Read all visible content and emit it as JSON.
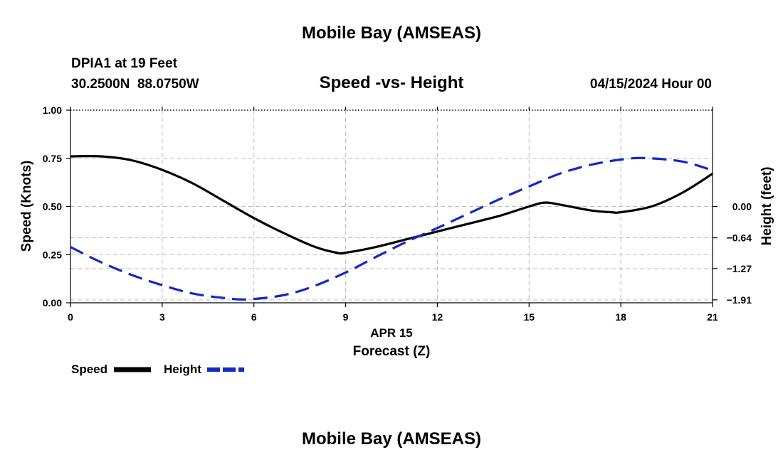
{
  "chart_data": {
    "type": "line",
    "title": "Mobile Bay (AMSEAS)",
    "footer_title": "Mobile Bay (AMSEAS)",
    "station": "DPIA1 at 19 Feet",
    "coordinates": "30.2500N  88.0750W",
    "subtitle": "Speed -vs- Height",
    "datetime": "04/15/2024 Hour 00",
    "date_label": "APR 15",
    "xlabel": "Forecast (Z)",
    "ylabel_left": "Speed (Knots)",
    "ylabel_right": "Height (feet)",
    "xlim": [
      0,
      21
    ],
    "ylim_left": [
      0,
      1
    ],
    "ylim_right": [
      -1.97,
      1.97
    ],
    "x_ticks": [
      0,
      3,
      6,
      9,
      12,
      15,
      18,
      21
    ],
    "x_tick_labels": [
      "0",
      "3",
      "6",
      "9",
      "12",
      "15",
      "18",
      "21"
    ],
    "y_left_ticks": [
      0,
      0.25,
      0.5,
      0.75,
      1.0
    ],
    "y_left_tick_labels": [
      "0.00",
      "0.25",
      "0.50",
      "0.75",
      "1.00"
    ],
    "y_right_ticks": [
      0.0,
      -0.64,
      -1.27,
      -1.91
    ],
    "y_right_tick_labels": [
      "0.00",
      "−0.64",
      "−1.27",
      "−1.91"
    ],
    "grid": true,
    "legend_placement": "bottom-left",
    "series": [
      {
        "name": "Speed",
        "axis": "left",
        "color": "#000000",
        "style": "solid",
        "x": [
          0,
          1,
          2,
          3,
          4,
          5,
          6,
          7,
          8,
          8.7,
          9,
          10,
          11,
          12,
          13,
          14,
          15,
          15.5,
          16,
          17,
          17.7,
          18,
          19,
          20,
          21
        ],
        "values": [
          0.76,
          0.76,
          0.74,
          0.69,
          0.62,
          0.53,
          0.44,
          0.36,
          0.29,
          0.26,
          0.26,
          0.29,
          0.33,
          0.37,
          0.41,
          0.45,
          0.5,
          0.52,
          0.51,
          0.48,
          0.47,
          0.47,
          0.5,
          0.57,
          0.67
        ]
      },
      {
        "name": "Height",
        "axis": "right",
        "color": "#1427c8",
        "style": "dashed",
        "x": [
          0,
          1,
          2,
          3,
          4,
          5,
          5.8,
          7,
          8,
          9,
          10,
          11,
          12,
          13,
          14,
          15,
          16,
          17,
          18,
          18.8,
          20,
          21
        ],
        "values": [
          -0.83,
          -1.14,
          -1.4,
          -1.61,
          -1.78,
          -1.87,
          -1.9,
          -1.81,
          -1.62,
          -1.35,
          -1.03,
          -0.72,
          -0.44,
          -0.15,
          0.14,
          0.41,
          0.67,
          0.85,
          0.96,
          0.99,
          0.92,
          0.74
        ]
      }
    ]
  }
}
